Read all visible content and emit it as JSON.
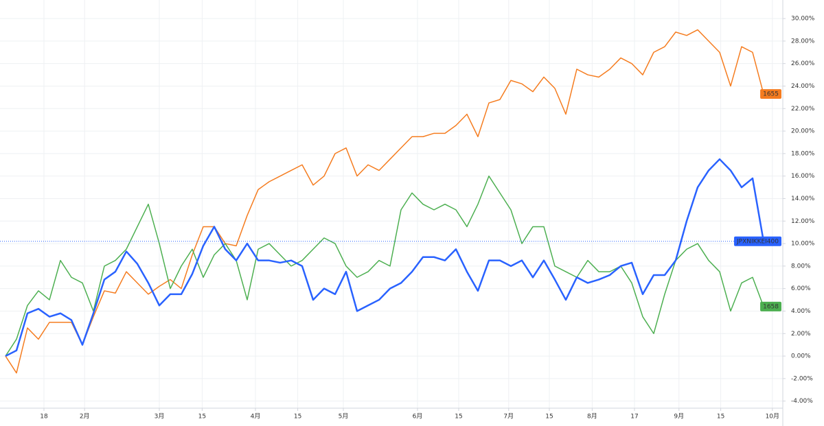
{
  "chart_data": {
    "type": "line",
    "xlim": [
      0,
      70.75
    ],
    "xticks": [
      {
        "value": 3.5,
        "label": "18"
      },
      {
        "value": 7.2,
        "label": "2月"
      },
      {
        "value": 14,
        "label": "3月"
      },
      {
        "value": 17.9,
        "label": "15"
      },
      {
        "value": 22.75,
        "label": "4月"
      },
      {
        "value": 26.6,
        "label": "15"
      },
      {
        "value": 30.75,
        "label": "5月"
      },
      {
        "value": 37.5,
        "label": "6月"
      },
      {
        "value": 41.25,
        "label": "15"
      },
      {
        "value": 45.8,
        "label": "7月"
      },
      {
        "value": 49.5,
        "label": "15"
      },
      {
        "value": 53.4,
        "label": "8月"
      },
      {
        "value": 57.25,
        "label": "17"
      },
      {
        "value": 61.3,
        "label": "9月"
      },
      {
        "value": 65.1,
        "label": "15"
      },
      {
        "value": 69.8,
        "label": "10月"
      }
    ],
    "ylim": [
      -4.63,
      31.65
    ],
    "yticks": [
      {
        "value": -4,
        "label": "-4.00%"
      },
      {
        "value": -2,
        "label": "-2.00%"
      },
      {
        "value": 0,
        "label": "0.00%"
      },
      {
        "value": 2,
        "label": "2.00%"
      },
      {
        "value": 4,
        "label": "4.00%"
      },
      {
        "value": 6,
        "label": "6.00%"
      },
      {
        "value": 8,
        "label": "8.00%"
      },
      {
        "value": 10,
        "label": "10.00%"
      },
      {
        "value": 12,
        "label": "12.00%"
      },
      {
        "value": 14,
        "label": "14.00%"
      },
      {
        "value": 16,
        "label": "16.00%"
      },
      {
        "value": 18,
        "label": "18.00%"
      },
      {
        "value": 20,
        "label": "20.00%"
      },
      {
        "value": 22,
        "label": "22.00%"
      },
      {
        "value": 24,
        "label": "24.00%"
      },
      {
        "value": 26,
        "label": "26.00%"
      },
      {
        "value": 28,
        "label": "28.00%"
      },
      {
        "value": 30,
        "label": "30.00%"
      }
    ],
    "grid": true,
    "series": [
      {
        "name": "1655",
        "color": "#f57c1f",
        "width": 1.5,
        "values": [
          0,
          -1.5,
          2.5,
          1.5,
          3,
          3,
          3,
          1,
          3.5,
          5.8,
          5.6,
          7.5,
          6.5,
          5.5,
          6.2,
          6.8,
          6,
          9,
          11.5,
          11.5,
          10,
          9.8,
          12.5,
          14.8,
          15.5,
          16,
          16.5,
          17,
          15.2,
          16,
          18,
          18.5,
          16,
          17,
          16.5,
          17.5,
          18.5,
          19.5,
          19.5,
          19.8,
          19.8,
          20.5,
          21.5,
          19.5,
          22.5,
          22.8,
          24.5,
          24.2,
          23.5,
          24.8,
          23.8,
          21.5,
          25.5,
          25,
          24.8,
          25.5,
          26.5,
          26,
          25,
          27,
          27.5,
          28.8,
          28.5,
          29,
          28,
          27,
          24,
          27.5,
          27,
          23.3
        ]
      },
      {
        "name": "1658",
        "color": "#4caf50",
        "width": 1.5,
        "values": [
          0,
          1.5,
          4.5,
          5.8,
          5,
          8.5,
          7,
          6.5,
          4,
          8,
          8.5,
          9.5,
          11.5,
          13.5,
          10,
          6,
          8,
          9.5,
          7,
          9,
          10,
          8.5,
          5,
          9.5,
          10,
          9,
          8,
          8.5,
          9.5,
          10.5,
          10,
          8,
          7,
          7.5,
          8.5,
          8,
          13,
          14.5,
          13.5,
          13,
          13.5,
          13,
          11.5,
          13.5,
          16,
          14.5,
          13,
          10,
          11.5,
          11.5,
          8,
          7.5,
          7,
          8.5,
          7.5,
          7.5,
          8,
          6.5,
          3.5,
          2,
          5.5,
          8.5,
          9.5,
          10,
          8.5,
          7.5,
          4,
          6.5,
          7,
          4.4
        ]
      },
      {
        "name": "JPXNIKKEI400",
        "color": "#2962ff",
        "width": 2.5,
        "values": [
          0,
          0.5,
          3.8,
          4.2,
          3.5,
          3.8,
          3.2,
          1,
          3.8,
          6.8,
          7.5,
          9.3,
          8.2,
          6.5,
          4.5,
          5.5,
          5.5,
          7.3,
          9.8,
          11.5,
          9.5,
          8.5,
          10,
          8.5,
          8.5,
          8.3,
          8.5,
          8,
          5,
          6,
          5.5,
          7.5,
          4,
          4.5,
          5,
          6,
          6.5,
          7.5,
          8.8,
          8.8,
          8.5,
          9.5,
          7.5,
          5.8,
          8.5,
          8.5,
          8,
          8.5,
          7,
          8.5,
          6.8,
          5,
          7,
          6.5,
          6.8,
          7.2,
          8,
          8.3,
          5.5,
          7.2,
          7.2,
          8.5,
          12,
          15,
          16.5,
          17.5,
          16.5,
          15,
          15.8,
          10.2
        ]
      }
    ]
  }
}
